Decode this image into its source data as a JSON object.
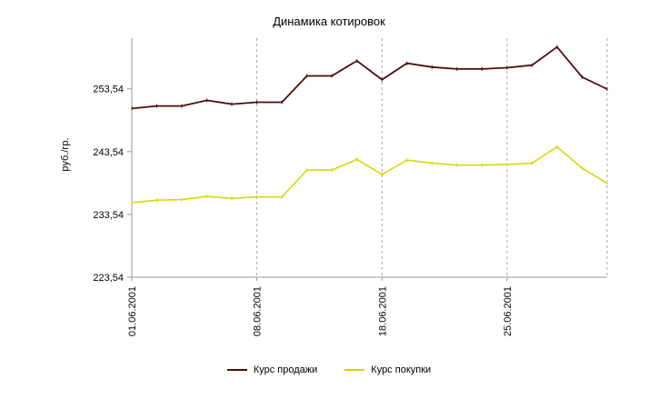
{
  "title": "Динамика котировок",
  "ylabel": "руб./гр.",
  "colors": {
    "axis": "#999999",
    "grid": "#aaaaaa",
    "text": "#000000"
  },
  "chart_data": {
    "type": "line",
    "title": "Динамика котировок",
    "xlabel": "",
    "ylabel": "руб./гр.",
    "grid": "vertical-dashed",
    "legend_position": "bottom",
    "n_points": 20,
    "x_tick_labels": [
      "01.06.2001",
      "08.06.2001",
      "18.06.2001",
      "25.06.2001"
    ],
    "x_tick_indices": [
      0,
      5,
      10,
      15
    ],
    "y_ticks": [
      "223,54",
      "233,54",
      "243,54",
      "253,54"
    ],
    "y_tick_values": [
      223.54,
      233.54,
      243.54,
      253.54
    ],
    "ylim": [
      223.54,
      261.6
    ],
    "series": [
      {
        "name": "Курс продажи",
        "color": "#4c0d0d",
        "values": [
          250.4,
          250.8,
          250.8,
          251.7,
          251.1,
          251.4,
          251.4,
          255.6,
          255.6,
          258.0,
          255.0,
          257.6,
          257.0,
          256.7,
          256.7,
          256.9,
          257.3,
          260.2,
          255.4,
          253.5
        ]
      },
      {
        "name": "Курс покупки",
        "color": "#d4d400",
        "values": [
          235.4,
          235.8,
          235.9,
          236.4,
          236.1,
          236.3,
          236.3,
          240.6,
          240.6,
          242.3,
          239.9,
          242.2,
          241.7,
          241.4,
          241.4,
          241.5,
          241.7,
          244.3,
          240.9,
          238.5
        ]
      }
    ]
  }
}
